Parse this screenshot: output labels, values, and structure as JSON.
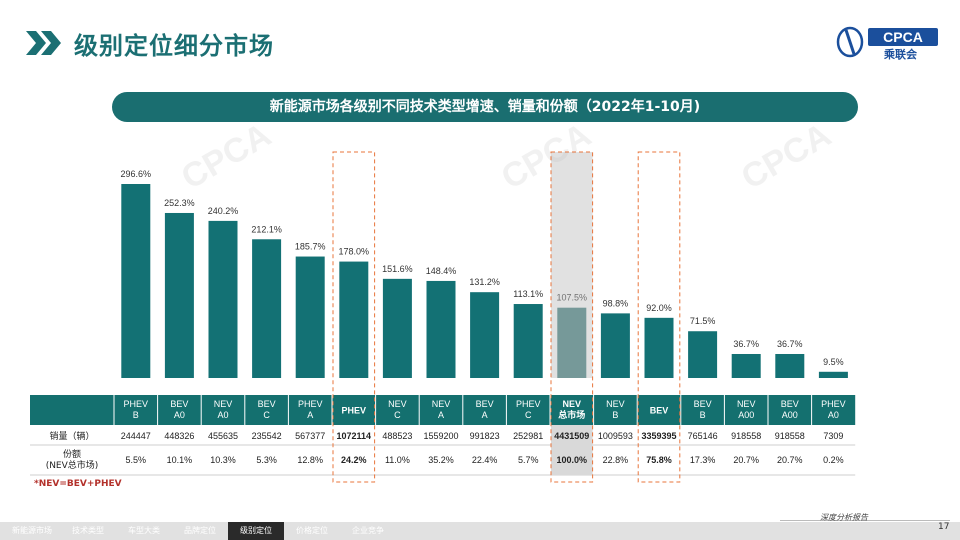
{
  "page": {
    "title": "级别定位细分市场",
    "logo_text": "CPCA",
    "logo_sub": "乘联会",
    "banner": "新能源市场各级别不同技术类型增速、销量和份额（2022年1-10月)",
    "footnote": "*NEV=BEV+PHEV",
    "slogan": "深度分析报告",
    "page_number": "17",
    "colors": {
      "bar": "#137174",
      "bar_highlight": "#3c7c7c",
      "header": "#14706f",
      "highlight_border": "#e8743b",
      "title": "#1b6f73"
    }
  },
  "footer": {
    "tabs": [
      "新能源市场",
      "技术类型",
      "车型大类",
      "品牌定位",
      "级别定位",
      "价格定位",
      "企业竞争"
    ],
    "active_index": 4
  },
  "table": {
    "row_labels": [
      "销量（辆）",
      "份额\n(NEV总市场)"
    ],
    "columns": [
      {
        "label": "PHEV\nB",
        "sales": "244447",
        "share": "5.5%"
      },
      {
        "label": "BEV\nA0",
        "sales": "448326",
        "share": "10.1%"
      },
      {
        "label": "NEV\nA0",
        "sales": "455635",
        "share": "10.3%"
      },
      {
        "label": "BEV\nC",
        "sales": "235542",
        "share": "5.3%"
      },
      {
        "label": "PHEV\nA",
        "sales": "567377",
        "share": "12.8%"
      },
      {
        "label": "PHEV",
        "sales": "1072114",
        "share": "24.2%",
        "bold": true,
        "highlight": "box"
      },
      {
        "label": "NEV\nC",
        "sales": "488523",
        "share": "11.0%"
      },
      {
        "label": "NEV\nA",
        "sales": "1559200",
        "share": "35.2%"
      },
      {
        "label": "BEV\nA",
        "sales": "991823",
        "share": "22.4%"
      },
      {
        "label": "PHEV\nC",
        "sales": "252981",
        "share": "5.7%"
      },
      {
        "label": "NEV\n总市场",
        "sales": "4431509",
        "share": "100.0%",
        "bold": true,
        "highlight": "shade"
      },
      {
        "label": "NEV\nB",
        "sales": "1009593",
        "share": "22.8%"
      },
      {
        "label": "BEV",
        "sales": "3359395",
        "share": "75.8%",
        "bold": true,
        "highlight": "box"
      },
      {
        "label": "BEV\nB",
        "sales": "765146",
        "share": "17.3%"
      },
      {
        "label": "NEV\nA00",
        "sales": "918558",
        "share": "20.7%"
      },
      {
        "label": "BEV\nA00",
        "sales": "918558",
        "share": "20.7%"
      },
      {
        "label": "PHEV\nA0",
        "sales": "7309",
        "share": "0.2%"
      }
    ]
  },
  "chart_data": {
    "type": "bar",
    "categories": [
      "PHEV B",
      "BEV A0",
      "NEV A0",
      "BEV C",
      "PHEV A",
      "PHEV",
      "NEV C",
      "NEV A",
      "BEV A",
      "PHEV C",
      "NEV 总市场",
      "NEV B",
      "BEV",
      "BEV B",
      "NEV A00",
      "BEV A00",
      "PHEV A0"
    ],
    "values": [
      296.6,
      252.3,
      240.2,
      212.1,
      185.7,
      178.0,
      151.6,
      148.4,
      131.2,
      113.1,
      107.5,
      98.8,
      92.0,
      71.5,
      36.7,
      36.7,
      9.5
    ],
    "labels": [
      "296.6%",
      "252.3%",
      "240.2%",
      "212.1%",
      "185.7%",
      "178.0%",
      "151.6%",
      "148.4%",
      "131.2%",
      "113.1%",
      "107.5%",
      "98.8%",
      "92.0%",
      "71.5%",
      "36.7%",
      "36.7%",
      "9.5%"
    ],
    "title": "",
    "xlabel": "",
    "ylabel": "",
    "ylim": [
      0,
      300
    ],
    "grid": false,
    "legend": "none"
  }
}
